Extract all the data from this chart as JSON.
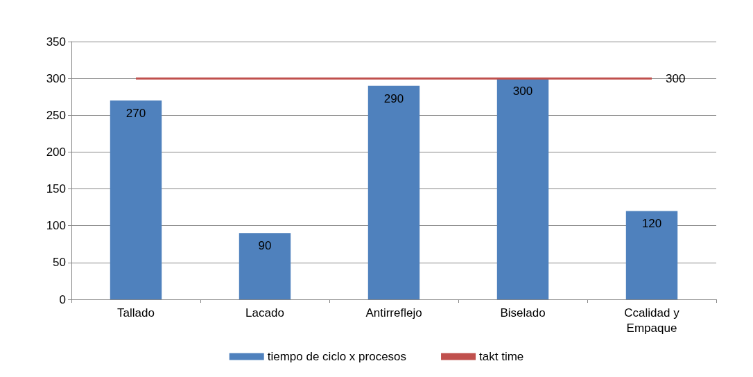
{
  "chart_data": {
    "type": "bar",
    "categories": [
      "Tallado",
      "Lacado",
      "Antirreflejo",
      "Biselado",
      "Ccalidad y\nEmpaque"
    ],
    "series": [
      {
        "name": "tiempo de ciclo x procesos",
        "color": "#4f81bd",
        "values": [
          270,
          90,
          290,
          300,
          120
        ],
        "value_labels": [
          "270",
          "90",
          "290",
          "300",
          "120"
        ]
      },
      {
        "name": "takt time",
        "type": "line",
        "color": "#c0504d",
        "values": [
          300,
          300,
          300,
          300,
          300
        ],
        "value_labels": [
          null,
          null,
          null,
          null,
          "300"
        ]
      }
    ],
    "ylim": [
      0,
      350
    ],
    "yticks": [
      0,
      50,
      100,
      150,
      200,
      250,
      300,
      350
    ],
    "grid": "y",
    "legend": "bottom",
    "marker": "none"
  }
}
